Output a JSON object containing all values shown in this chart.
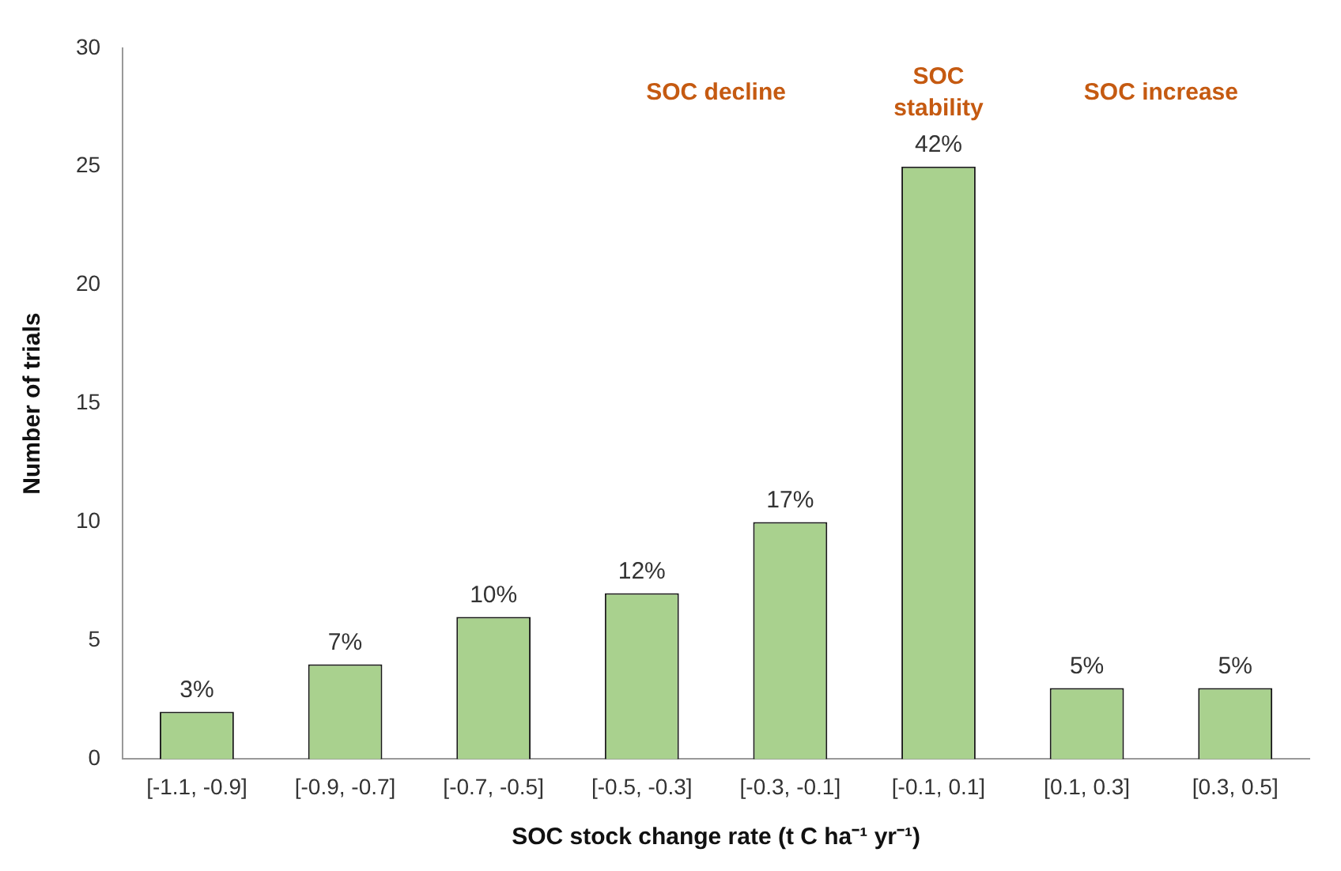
{
  "chart_data": {
    "type": "bar",
    "xlabel": "SOC stock change rate (t C ha⁻¹ yr⁻¹)",
    "ylabel": "Number of trials",
    "categories": [
      "[-1.1, -0.9]",
      "[-0.9, -0.7]",
      "[-0.7, -0.5]",
      "[-0.5, -0.3]",
      "[-0.3, -0.1]",
      "[-0.1, 0.1]",
      "[0.1, 0.3]",
      "[0.3, 0.5]"
    ],
    "values": [
      2,
      4,
      6,
      7,
      10,
      25,
      3,
      3
    ],
    "color": "#a9d18e",
    "ylim": [
      0,
      30
    ],
    "yticks": [
      0,
      5,
      10,
      15,
      20,
      25,
      30
    ],
    "grid": false,
    "legend": false,
    "annotations": [
      "SOC decline",
      "SOC stability",
      "SOC increase",
      {
        "text": "3%",
        "x": "[-1.1, -0.9]",
        "y": 2
      },
      {
        "text": "7%",
        "x": "[-0.9, -0.7]",
        "y": 4
      },
      {
        "text": "10%",
        "x": "[-0.7, -0.5]",
        "y": 6
      },
      {
        "text": "12%",
        "x": "[-0.5, -0.3]",
        "y": 7
      },
      {
        "text": "17%",
        "x": "[-0.3, -0.1]",
        "y": 10
      },
      {
        "text": "42%",
        "x": "[-0.1, 0.1]",
        "y": 25
      },
      {
        "text": "5%",
        "x": "[0.1, 0.3]",
        "y": 3
      },
      {
        "text": "5%",
        "x": "[0.3, 0.5]",
        "y": 3
      }
    ]
  }
}
